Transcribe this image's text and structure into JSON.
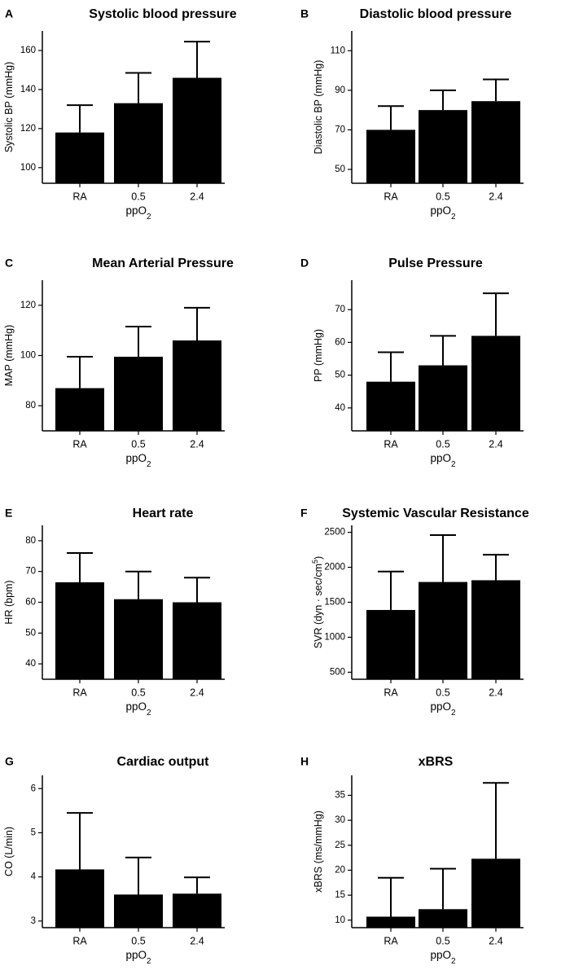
{
  "chart_data": [
    {
      "type": "bar",
      "panel": "A",
      "title": "Systolic blood pressure",
      "xlabel": "ppO",
      "xlabel_sub": "2",
      "ylabel": "Systolic BP (mmHg)",
      "ylabel_sup": "",
      "categories": [
        "RA",
        "0.5",
        "2.4"
      ],
      "values": [
        118,
        133,
        146
      ],
      "errors_upper": [
        132,
        148.5,
        164.5
      ],
      "ylim": [
        92,
        170
      ],
      "yticks": [
        100,
        120,
        140,
        160
      ]
    },
    {
      "type": "bar",
      "panel": "B",
      "title": "Diastolic blood pressure",
      "xlabel": "ppO",
      "xlabel_sub": "2",
      "ylabel": "Diastolic BP (mmHg)",
      "ylabel_sup": "",
      "categories": [
        "RA",
        "0.5",
        "2.4"
      ],
      "values": [
        70,
        80,
        84.5
      ],
      "errors_upper": [
        82,
        90,
        95.5
      ],
      "ylim": [
        43,
        120
      ],
      "yticks": [
        50,
        70,
        90,
        110
      ]
    },
    {
      "type": "bar",
      "panel": "C",
      "title": "Mean Arterial Pressure",
      "xlabel": "ppO",
      "xlabel_sub": "2",
      "ylabel": "MAP (mmHg)",
      "ylabel_sup": "",
      "categories": [
        "RA",
        "0.5",
        "2.4"
      ],
      "values": [
        87,
        99.5,
        106
      ],
      "errors_upper": [
        99.5,
        111.5,
        119
      ],
      "ylim": [
        70,
        130
      ],
      "yticks": [
        80,
        100,
        120
      ]
    },
    {
      "type": "bar",
      "panel": "D",
      "title": "Pulse Pressure",
      "xlabel": "ppO",
      "xlabel_sub": "2",
      "ylabel": "PP (mmHg)",
      "ylabel_sup": "",
      "categories": [
        "RA",
        "0.5",
        "2.4"
      ],
      "values": [
        48,
        53,
        62
      ],
      "errors_upper": [
        57,
        62,
        75
      ],
      "ylim": [
        33,
        79
      ],
      "yticks": [
        40,
        50,
        60,
        70
      ]
    },
    {
      "type": "bar",
      "panel": "E",
      "title": "Heart rate",
      "xlabel": "ppO",
      "xlabel_sub": "2",
      "ylabel": "HR (bpm)",
      "ylabel_sup": "",
      "categories": [
        "RA",
        "0.5",
        "2.4"
      ],
      "values": [
        66.5,
        61,
        60
      ],
      "errors_upper": [
        76,
        70,
        68
      ],
      "ylim": [
        35,
        85
      ],
      "yticks": [
        40,
        50,
        60,
        70,
        80
      ]
    },
    {
      "type": "bar",
      "panel": "F",
      "title": "Systemic Vascular Resistance",
      "xlabel": "ppO",
      "xlabel_sub": "2",
      "ylabel": "SVR (dyn · sec/cm",
      "ylabel_sup": "5",
      "ylabel_end": ")",
      "categories": [
        "RA",
        "0.5",
        "2.4"
      ],
      "values": [
        1390,
        1790,
        1815
      ],
      "errors_upper": [
        1940,
        2460,
        2180
      ],
      "ylim": [
        400,
        2600
      ],
      "yticks": [
        500,
        1000,
        1500,
        2000,
        2500
      ]
    },
    {
      "type": "bar",
      "panel": "G",
      "title": "Cardiac output",
      "xlabel": "ppO",
      "xlabel_sub": "2",
      "ylabel": "CO (L/min)",
      "ylabel_sup": "",
      "categories": [
        "RA",
        "0.5",
        "2.4"
      ],
      "values": [
        4.17,
        3.6,
        3.62
      ],
      "errors_upper": [
        5.45,
        4.44,
        3.99
      ],
      "ylim": [
        2.85,
        6.3
      ],
      "yticks": [
        3,
        4,
        5,
        6
      ]
    },
    {
      "type": "bar",
      "panel": "H",
      "title": "xBRS",
      "xlabel": "ppO",
      "xlabel_sub": "2",
      "ylabel": "xBRS (ms/mmHg)",
      "ylabel_sup": "",
      "categories": [
        "RA",
        "0.5",
        "2.4"
      ],
      "values": [
        10.7,
        12.2,
        22.3
      ],
      "errors_upper": [
        18.5,
        20.3,
        37.5
      ],
      "ylim": [
        8.5,
        39
      ],
      "yticks": [
        10,
        15,
        20,
        25,
        30,
        35
      ]
    }
  ]
}
